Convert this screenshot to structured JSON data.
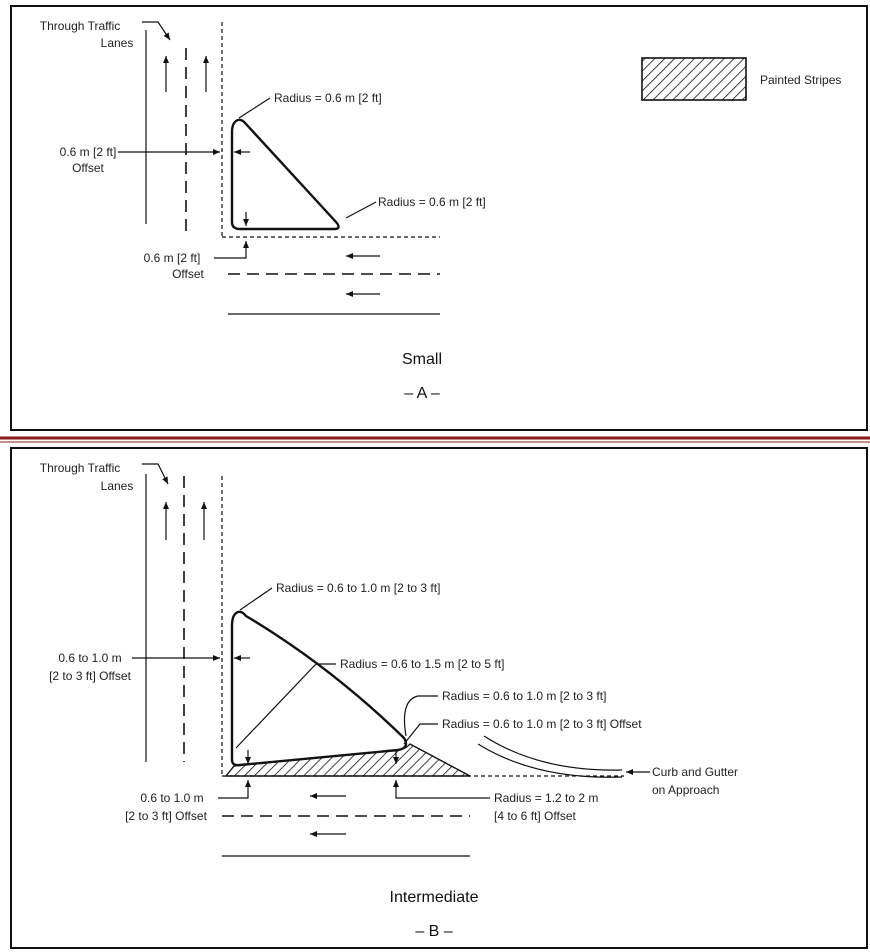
{
  "panel_a": {
    "through_traffic_line1": "Through Traffic",
    "through_traffic_line2": "Lanes",
    "radius_top": "Radius = 0.6 m [2 ft]",
    "radius_right": "Radius = 0.6 m [2 ft]",
    "offset_left_line1": "0.6 m [2 ft]",
    "offset_left_line2": "Offset",
    "offset_bottom_line1": "0.6 m [2 ft]",
    "offset_bottom_line2": "Offset",
    "caption": "Small",
    "letter": "– A –"
  },
  "legend": {
    "label": "Painted Stripes"
  },
  "panel_b": {
    "through_traffic_line1": "Through Traffic",
    "through_traffic_line2": "Lanes",
    "radius_top": "Radius = 0.6 to 1.0 m [2 to 3 ft]",
    "radius_middle": "Radius = 0.6 to 1.5 m [2 to 5 ft]",
    "radius_nose": "Radius = 0.6 to 1.0 m [2 to 3 ft]",
    "radius_nose_offset": "Radius = 0.6 to 1.0 m [2 to 3 ft] Offset",
    "offset_left_line1": "0.6 to 1.0 m",
    "offset_left_line2": "[2 to 3 ft] Offset",
    "offset_bottom_line1": "0.6 to 1.0 m",
    "offset_bottom_line2": "[2 to 3 ft] Offset",
    "radius_bottom_line1": "Radius = 1.2 to 2 m",
    "radius_bottom_line2": "[4 to 6 ft] Offset",
    "curb_line1": "Curb and Gutter",
    "curb_line2": "on Approach",
    "caption": "Intermediate",
    "letter": "– B –"
  },
  "colors": {
    "separator_red": "#8b1a1a",
    "ink": "#111111"
  }
}
